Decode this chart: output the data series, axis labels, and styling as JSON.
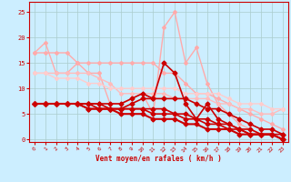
{
  "bg_color": "#cceeff",
  "grid_color": "#aacccc",
  "xlabel": "Vent moyen/en rafales ( km/h )",
  "xlabel_color": "#cc0000",
  "tick_color": "#cc0000",
  "axis_color": "#cc0000",
  "x_ticks": [
    0,
    1,
    2,
    3,
    4,
    5,
    6,
    7,
    8,
    9,
    10,
    11,
    12,
    13,
    14,
    15,
    16,
    17,
    18,
    19,
    20,
    21,
    22,
    23
  ],
  "y_ticks": [
    0,
    5,
    10,
    15,
    20,
    25
  ],
  "ylim": [
    -0.5,
    27
  ],
  "xlim": [
    -0.5,
    23.5
  ],
  "lines": [
    {
      "x": [
        0,
        1,
        2,
        3,
        4,
        5,
        6,
        7,
        8,
        9,
        10,
        11,
        12,
        13,
        14,
        15,
        16,
        17,
        18,
        19,
        20,
        21,
        22,
        23
      ],
      "y": [
        17,
        19,
        13,
        13,
        15,
        13,
        13,
        7,
        7,
        8,
        9,
        5,
        22,
        25,
        15,
        18,
        11,
        7,
        5,
        3,
        2,
        1,
        1,
        0
      ],
      "color": "#ffaaaa",
      "lw": 1.0,
      "marker": "D",
      "ms": 2.0,
      "zorder": 2
    },
    {
      "x": [
        0,
        1,
        2,
        3,
        4,
        5,
        6,
        7,
        8,
        9,
        10,
        11,
        12,
        13,
        14,
        15,
        16,
        17,
        18,
        19,
        20,
        21,
        22,
        23
      ],
      "y": [
        17,
        17,
        17,
        17,
        15,
        15,
        15,
        15,
        15,
        15,
        15,
        15,
        13,
        13,
        11,
        9,
        9,
        8,
        7,
        6,
        5,
        4,
        3,
        2
      ],
      "color": "#ffaaaa",
      "lw": 1.0,
      "marker": "D",
      "ms": 2.0,
      "zorder": 2
    },
    {
      "x": [
        0,
        1,
        2,
        3,
        4,
        5,
        6,
        7,
        8,
        9,
        10,
        11,
        12,
        13,
        14,
        15,
        16,
        17,
        18,
        19,
        20,
        21,
        22,
        23
      ],
      "y": [
        13,
        13,
        13,
        13,
        13,
        13,
        12,
        11,
        9,
        9,
        9,
        9,
        9,
        8,
        8,
        8,
        8,
        7,
        7,
        6,
        6,
        5,
        5,
        6
      ],
      "color": "#ffbbbb",
      "lw": 1.0,
      "marker": "D",
      "ms": 2.0,
      "zorder": 2
    },
    {
      "x": [
        0,
        1,
        2,
        3,
        4,
        5,
        6,
        7,
        8,
        9,
        10,
        11,
        12,
        13,
        14,
        15,
        16,
        17,
        18,
        19,
        20,
        21,
        22,
        23
      ],
      "y": [
        13,
        13,
        12,
        12,
        12,
        11,
        11,
        10,
        10,
        10,
        10,
        10,
        10,
        10,
        9,
        9,
        9,
        9,
        8,
        7,
        7,
        7,
        6,
        6
      ],
      "color": "#ffcccc",
      "lw": 1.0,
      "marker": "D",
      "ms": 2.0,
      "zorder": 2
    },
    {
      "x": [
        0,
        1,
        2,
        3,
        4,
        5,
        6,
        7,
        8,
        9,
        10,
        11,
        12,
        13,
        14,
        15,
        16,
        17,
        18,
        19,
        20,
        21,
        22,
        23
      ],
      "y": [
        7,
        7,
        7,
        7,
        7,
        7,
        7,
        7,
        7,
        8,
        9,
        8,
        15,
        13,
        7,
        4,
        7,
        4,
        3,
        2,
        1,
        1,
        1,
        0
      ],
      "color": "#cc0000",
      "lw": 1.2,
      "marker": "D",
      "ms": 2.5,
      "zorder": 3
    },
    {
      "x": [
        0,
        1,
        2,
        3,
        4,
        5,
        6,
        7,
        8,
        9,
        10,
        11,
        12,
        13,
        14,
        15,
        16,
        17,
        18,
        19,
        20,
        21,
        22,
        23
      ],
      "y": [
        7,
        7,
        7,
        7,
        7,
        7,
        7,
        6,
        6,
        7,
        8,
        8,
        8,
        8,
        8,
        7,
        6,
        6,
        5,
        4,
        3,
        2,
        2,
        1
      ],
      "color": "#cc0000",
      "lw": 1.2,
      "marker": "D",
      "ms": 2.5,
      "zorder": 3
    },
    {
      "x": [
        0,
        1,
        2,
        3,
        4,
        5,
        6,
        7,
        8,
        9,
        10,
        11,
        12,
        13,
        14,
        15,
        16,
        17,
        18,
        19,
        20,
        21,
        22,
        23
      ],
      "y": [
        7,
        7,
        7,
        7,
        7,
        7,
        6,
        6,
        6,
        6,
        6,
        6,
        6,
        5,
        5,
        4,
        4,
        3,
        3,
        2,
        2,
        1,
        1,
        1
      ],
      "color": "#cc0000",
      "lw": 1.2,
      "marker": "D",
      "ms": 2.5,
      "zorder": 3
    },
    {
      "x": [
        0,
        1,
        2,
        3,
        4,
        5,
        6,
        7,
        8,
        9,
        10,
        11,
        12,
        13,
        14,
        15,
        16,
        17,
        18,
        19,
        20,
        21,
        22,
        23
      ],
      "y": [
        7,
        7,
        7,
        7,
        7,
        6,
        6,
        6,
        6,
        6,
        6,
        5,
        5,
        5,
        4,
        4,
        3,
        3,
        2,
        2,
        1,
        1,
        1,
        0
      ],
      "color": "#cc0000",
      "lw": 1.2,
      "marker": "D",
      "ms": 2.5,
      "zorder": 3
    },
    {
      "x": [
        0,
        1,
        2,
        3,
        4,
        5,
        6,
        7,
        8,
        9,
        10,
        11,
        12,
        13,
        14,
        15,
        16,
        17,
        18,
        19,
        20,
        21,
        22,
        23
      ],
      "y": [
        7,
        7,
        7,
        7,
        7,
        6,
        6,
        6,
        5,
        5,
        5,
        4,
        4,
        4,
        3,
        3,
        2,
        2,
        2,
        1,
        1,
        1,
        1,
        0
      ],
      "color": "#cc0000",
      "lw": 1.5,
      "marker": "D",
      "ms": 2.5,
      "zorder": 3
    }
  ]
}
